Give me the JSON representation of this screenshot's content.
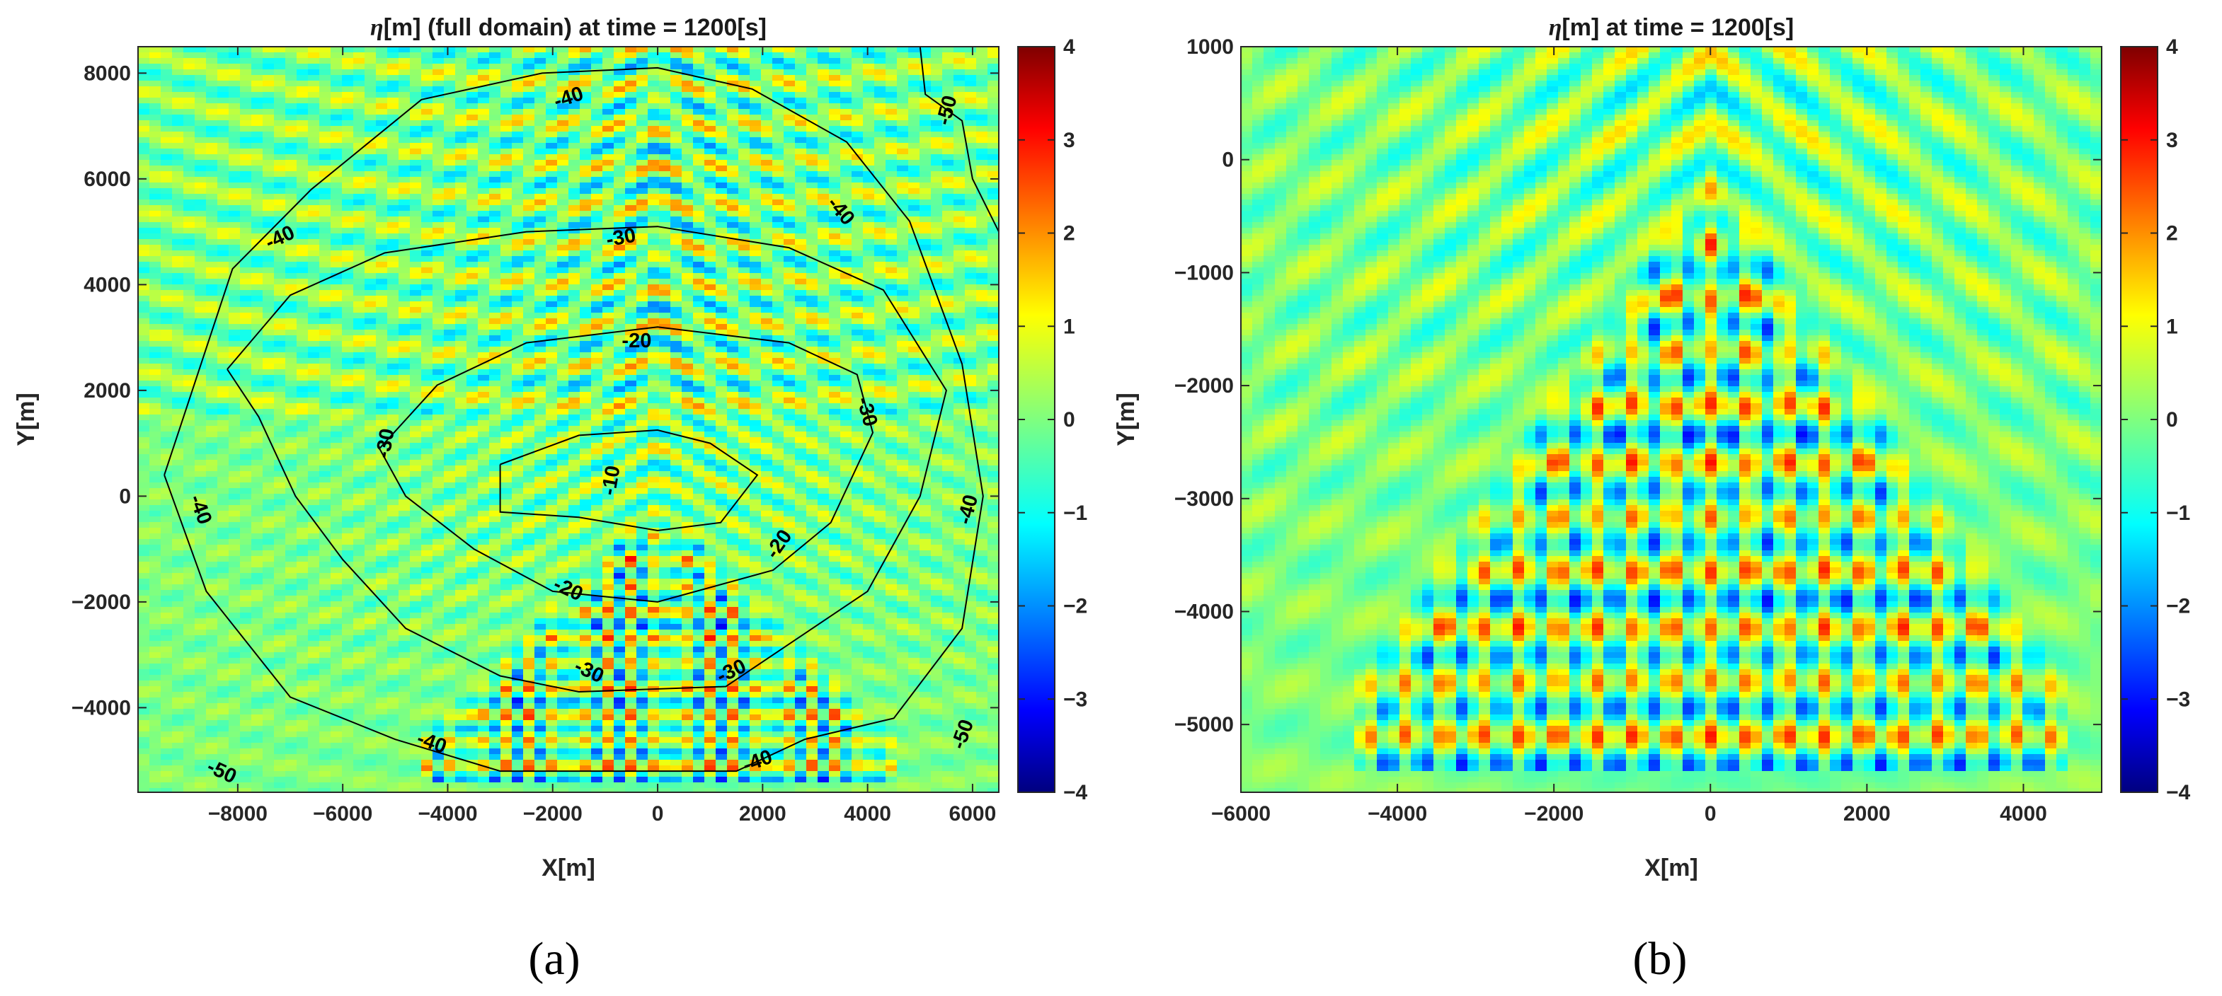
{
  "figure": {
    "panel_labels": [
      "(a)",
      "(b)"
    ],
    "colormap": {
      "name": "jet",
      "stops": [
        "#00007f",
        "#0000ff",
        "#00ffff",
        "#7fff7f",
        "#ffff00",
        "#ff0000",
        "#7f0000"
      ],
      "ticks": [
        "4",
        "3",
        "2",
        "1",
        "0",
        "−1",
        "−2",
        "−3",
        "−4"
      ]
    }
  },
  "chart_data": [
    {
      "type": "heatmap",
      "panel": "(a)",
      "title_eta": "η",
      "title_rest": "[m] (full domain) at time = 1200[s]",
      "xlabel": "X[m]",
      "ylabel": "Y[m]",
      "xlim": [
        -9900,
        6500
      ],
      "ylim": [
        -5600,
        8500
      ],
      "clim": [
        -4,
        4
      ],
      "xticks": [
        -8000,
        -6000,
        -4000,
        -2000,
        0,
        2000,
        4000,
        6000
      ],
      "xtick_labels": [
        "−8000",
        "−6000",
        "−4000",
        "−2000",
        "0",
        "2000",
        "4000",
        "6000"
      ],
      "yticks": [
        8000,
        6000,
        4000,
        2000,
        0,
        -2000,
        -4000
      ],
      "ytick_labels": [
        "8000",
        "6000",
        "4000",
        "2000",
        "0",
        "−2000",
        "−4000"
      ],
      "bathymetry_contours": [
        {
          "level": -10,
          "label": "-10",
          "points": [
            [
              -3000,
              600
            ],
            [
              -1500,
              1150
            ],
            [
              0,
              1250
            ],
            [
              1000,
              1000
            ],
            [
              1900,
              400
            ],
            [
              1200,
              -500
            ],
            [
              0,
              -650
            ],
            [
              -1500,
              -400
            ],
            [
              -3000,
              -300
            ],
            [
              -3000,
              600
            ]
          ],
          "label_at": [
            -900,
            300
          ],
          "label_rot": -80
        },
        {
          "level": -20,
          "label": "-20",
          "points": [
            [
              -5300,
              900
            ],
            [
              -4200,
              2100
            ],
            [
              -2500,
              2900
            ],
            [
              0,
              3200
            ],
            [
              2500,
              2900
            ],
            [
              3800,
              2300
            ],
            [
              4100,
              1200
            ],
            [
              3300,
              -500
            ],
            [
              2200,
              -1400
            ],
            [
              0,
              -2000
            ],
            [
              -2000,
              -1800
            ],
            [
              -3500,
              -1000
            ],
            [
              -4800,
              0
            ],
            [
              -5300,
              900
            ]
          ],
          "label_at": [
            -400,
            2950
          ],
          "label_rot": 0,
          "extra_labels": [
            {
              "at": [
                2300,
                -900
              ],
              "rot": -55
            },
            {
              "at": [
                -1700,
                -1750
              ],
              "rot": 25
            }
          ]
        },
        {
          "level": -30,
          "label": "-30",
          "points": [
            [
              -8200,
              2400
            ],
            [
              -7000,
              3800
            ],
            [
              -5200,
              4600
            ],
            [
              -2500,
              5000
            ],
            [
              0,
              5100
            ],
            [
              2500,
              4700
            ],
            [
              4300,
              3900
            ],
            [
              5500,
              2000
            ],
            [
              5000,
              0
            ],
            [
              4000,
              -1800
            ],
            [
              2500,
              -2800
            ],
            [
              1300,
              -3600
            ],
            [
              -1500,
              -3700
            ],
            [
              -3000,
              -3400
            ],
            [
              -4800,
              -2500
            ],
            [
              -6000,
              -1200
            ],
            [
              -6900,
              0
            ],
            [
              -7600,
              1500
            ],
            [
              -8200,
              2400
            ]
          ],
          "label_at": [
            -700,
            4900
          ],
          "label_rot": -10,
          "extra_labels": [
            {
              "at": [
                -5200,
                1000
              ],
              "rot": -80
            },
            {
              "at": [
                4000,
                1600
              ],
              "rot": 75
            },
            {
              "at": [
                -1300,
                -3300
              ],
              "rot": 25
            },
            {
              "at": [
                1400,
                -3300
              ],
              "rot": -25
            }
          ]
        },
        {
          "level": -40,
          "label": "-40",
          "points": [
            [
              -9400,
              400
            ],
            [
              -8100,
              4300
            ],
            [
              -6600,
              5800
            ],
            [
              -4500,
              7500
            ],
            [
              -2200,
              8000
            ],
            [
              0,
              8100
            ],
            [
              1800,
              7700
            ],
            [
              3600,
              6700
            ],
            [
              4800,
              5200
            ],
            [
              5800,
              2500
            ],
            [
              6200,
              0
            ],
            [
              5800,
              -2500
            ],
            [
              4500,
              -4200
            ],
            [
              2800,
              -4600
            ],
            [
              1500,
              -5200
            ],
            [
              -3000,
              -5200
            ],
            [
              -5000,
              -4600
            ],
            [
              -7000,
              -3800
            ],
            [
              -8600,
              -1800
            ],
            [
              -9400,
              400
            ]
          ],
          "label_at": [
            -1700,
            7550
          ],
          "label_rot": -18,
          "extra_labels": [
            {
              "at": [
                -7200,
                4900
              ],
              "rot": -25
            },
            {
              "at": [
                3500,
                5400
              ],
              "rot": 50
            },
            {
              "at": [
                -8700,
                -250
              ],
              "rot": 70
            },
            {
              "at": [
                5900,
                -250
              ],
              "rot": -75
            },
            {
              "at": [
                -4300,
                -4650
              ],
              "rot": 20
            },
            {
              "at": [
                1900,
                -5000
              ],
              "rot": -20
            }
          ]
        },
        {
          "level": -50,
          "label": "-50",
          "points": [
            [
              5000,
              8500
            ],
            [
              5100,
              7600
            ],
            [
              5800,
              7100
            ],
            [
              6000,
              6000
            ],
            [
              6500,
              5000
            ]
          ],
          "label_at": [
            5500,
            7300
          ],
          "label_rot": -75,
          "extra_labels": [
            {
              "at": [
                -8300,
                -5200
              ],
              "rot": 25
            },
            {
              "at": [
                5800,
                -4500
              ],
              "rot": -70
            }
          ]
        }
      ]
    },
    {
      "type": "heatmap",
      "panel": "(b)",
      "title_eta": "η",
      "title_rest": "[m] at time = 1200[s]",
      "xlabel": "X[m]",
      "ylabel": "Y[m]",
      "xlim": [
        -6000,
        5000
      ],
      "ylim": [
        -5600,
        1000
      ],
      "clim": [
        -4,
        4
      ],
      "xticks": [
        -6000,
        -4000,
        -2000,
        0,
        2000,
        4000
      ],
      "xtick_labels": [
        "−6000",
        "−4000",
        "−2000",
        "0",
        "2000",
        "4000"
      ],
      "yticks": [
        1000,
        0,
        -1000,
        -2000,
        -3000,
        -4000,
        -5000
      ],
      "ytick_labels": [
        "1000",
        "0",
        "−1000",
        "−2000",
        "−3000",
        "−4000",
        "−5000"
      ]
    }
  ]
}
